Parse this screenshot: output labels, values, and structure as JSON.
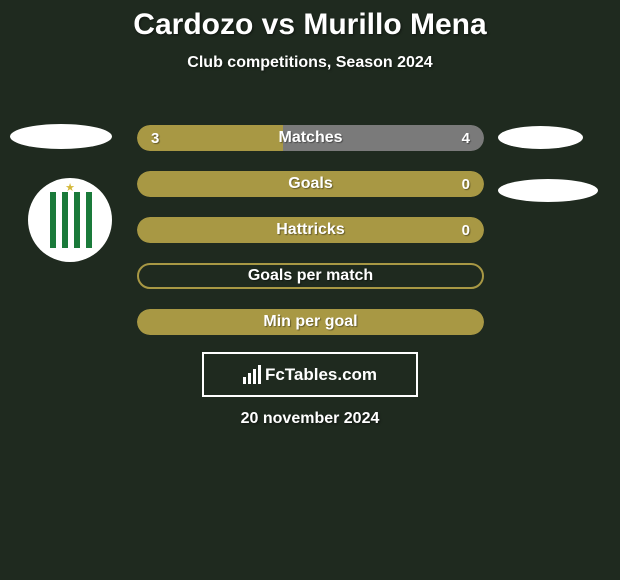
{
  "title": "Cardozo vs Murillo Mena",
  "subtitle": "Club competitions, Season 2024",
  "date": "20 november 2024",
  "logo_text": "FcTables.com",
  "colors": {
    "background": "#1f2a1f",
    "bar_left": "#a89844",
    "bar_right": "#6c6c6c",
    "bar_empty_border": "#a89844",
    "text": "#ffffff"
  },
  "bars": [
    {
      "label": "Matches",
      "left_val": "3",
      "right_val": "4",
      "left_pct": 42,
      "right_pct": 58,
      "left_color": "#a89844",
      "right_color": "#7a7a7a",
      "show_vals": true
    },
    {
      "label": "Goals",
      "left_val": "",
      "right_val": "0",
      "left_pct": 100,
      "right_pct": 0,
      "left_color": "#a89844",
      "right_color": "#7a7a7a",
      "show_vals": true
    },
    {
      "label": "Hattricks",
      "left_val": "",
      "right_val": "0",
      "left_pct": 100,
      "right_pct": 0,
      "left_color": "#a89844",
      "right_color": "#7a7a7a",
      "show_vals": true
    },
    {
      "label": "Goals per match",
      "left_val": "",
      "right_val": "",
      "left_pct": 0,
      "right_pct": 0,
      "left_color": "#a89844",
      "right_color": "#7a7a7a",
      "show_vals": false,
      "empty": true
    },
    {
      "label": "Min per goal",
      "left_val": "",
      "right_val": "",
      "left_pct": 100,
      "right_pct": 0,
      "left_color": "#a89844",
      "right_color": "#7a7a7a",
      "show_vals": false
    }
  ]
}
